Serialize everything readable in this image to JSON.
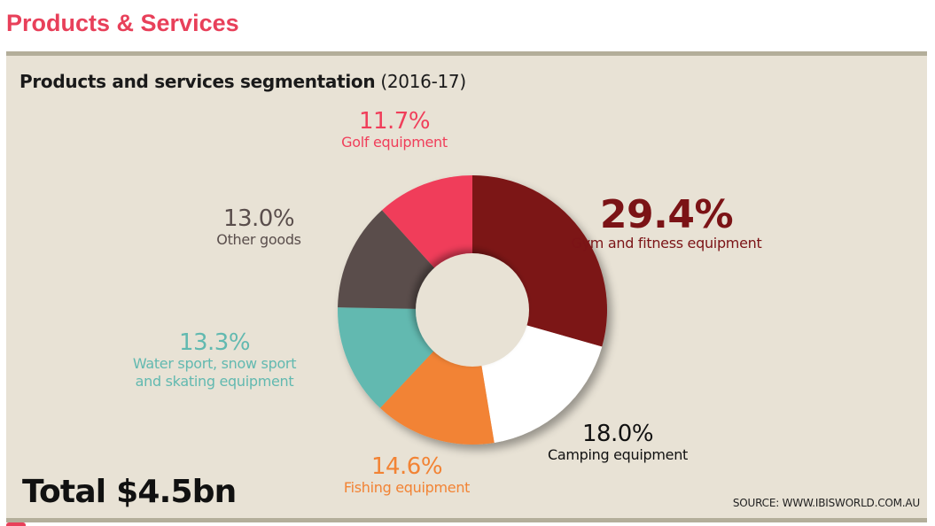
{
  "page": {
    "heading": "Products & Services"
  },
  "chart_data": {
    "type": "pie",
    "variant": "donut",
    "title": "Products and services segmentation",
    "title_period": "(2016-17)",
    "start_angle": "12 o'clock",
    "direction": "clockwise",
    "segments": [
      {
        "name": "Gym and fitness equipment",
        "value": 29.4,
        "label": "29.4%",
        "color": "#7b1316",
        "text_color": "#7b1316",
        "emphasis": true
      },
      {
        "name": "Camping equipment",
        "value": 18.0,
        "label": "18.0%",
        "color": "#ffffff",
        "text_color": "#111111",
        "emphasis": false
      },
      {
        "name": "Fishing equipment",
        "value": 14.6,
        "label": "14.6%",
        "color": "#f28334",
        "text_color": "#f28334",
        "emphasis": false
      },
      {
        "name": "Water sport, snow sport and skating equipment",
        "name_lines": [
          "Water sport, snow sport",
          "and skating equipment"
        ],
        "value": 13.3,
        "label": "13.3%",
        "color": "#62b9b0",
        "text_color": "#62b9b0",
        "emphasis": false
      },
      {
        "name": "Other goods",
        "value": 13.0,
        "label": "13.0%",
        "color": "#5a4e4c",
        "text_color": "#5a4e4c",
        "emphasis": false
      },
      {
        "name": "Golf equipment",
        "value": 11.7,
        "label": "11.7%",
        "color": "#f03e5a",
        "text_color": "#f03e5a",
        "emphasis": false
      }
    ],
    "total_label": "Total $4.5bn",
    "source": "SOURCE: WWW.IBISWORLD.COM.AU",
    "legend": "none (inline labels)"
  },
  "colors": {
    "heading": "#e8405a",
    "panel_bg": "#e8e2d5",
    "panel_border": "#b3ae9a"
  }
}
